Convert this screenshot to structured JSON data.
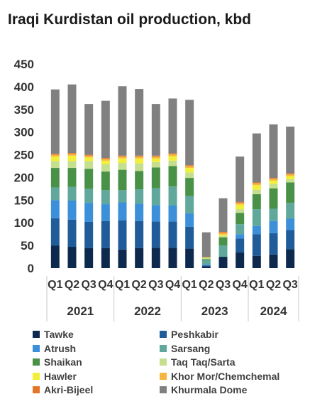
{
  "chart_data": {
    "type": "bar",
    "stacked": true,
    "title": "Iraqi Kurdistan oil production, kbd",
    "ylim": [
      0,
      450
    ],
    "yticks": [
      0,
      50,
      100,
      150,
      200,
      250,
      300,
      350,
      400,
      450
    ],
    "categories": [
      "Q1",
      "Q2",
      "Q3",
      "Q4",
      "Q1",
      "Q2",
      "Q3",
      "Q4",
      "Q1",
      "Q2",
      "Q3",
      "Q4",
      "Q1",
      "Q2",
      "Q3"
    ],
    "years": [
      {
        "label": "2021",
        "start": 0,
        "end": 3
      },
      {
        "label": "2022",
        "start": 4,
        "end": 7
      },
      {
        "label": "2023",
        "start": 8,
        "end": 11
      },
      {
        "label": "2024",
        "start": 12,
        "end": 14
      }
    ],
    "grid": false,
    "legend_position": "bottom",
    "series": [
      {
        "name": "Tawke",
        "color": "#0d2a4e",
        "values": [
          50,
          47,
          44,
          44,
          41,
          44,
          45,
          45,
          43,
          4,
          25,
          35,
          27,
          30,
          42
        ]
      },
      {
        "name": "Peshkabir",
        "color": "#1f5c99",
        "values": [
          60,
          60,
          58,
          60,
          64,
          60,
          58,
          58,
          48,
          2,
          0,
          30,
          48,
          47,
          42
        ]
      },
      {
        "name": "Atrush",
        "color": "#3c8fd9",
        "values": [
          40,
          42,
          42,
          37,
          40,
          38,
          36,
          35,
          30,
          2,
          0,
          10,
          18,
          27,
          25
        ]
      },
      {
        "name": "Sarsang",
        "color": "#5fa89b",
        "values": [
          28,
          30,
          31,
          31,
          27,
          32,
          37,
          42,
          38,
          10,
          25,
          22,
          37,
          27,
          35
        ]
      },
      {
        "name": "Shaikan",
        "color": "#4a9148",
        "values": [
          43,
          42,
          44,
          41,
          45,
          40,
          46,
          45,
          40,
          2,
          18,
          25,
          33,
          45,
          45
        ]
      },
      {
        "name": "Taq Taq/Sarta",
        "color": "#c6df8e",
        "values": [
          15,
          15,
          17,
          16,
          15,
          17,
          12,
          12,
          12,
          2,
          3,
          8,
          10,
          10,
          7
        ]
      },
      {
        "name": "Hawler",
        "color": "#f2ef3a",
        "values": [
          10,
          12,
          8,
          8,
          10,
          11,
          8,
          10,
          10,
          1,
          3,
          10,
          10,
          7,
          7
        ]
      },
      {
        "name": "Khor Mor/Chemchemal",
        "color": "#f5b540",
        "values": [
          4,
          4,
          4,
          4,
          4,
          4,
          4,
          4,
          4,
          1,
          4,
          4,
          4,
          4,
          4
        ]
      },
      {
        "name": "Akri-Bijeel",
        "color": "#e4762a",
        "values": [
          2,
          2,
          2,
          2,
          2,
          2,
          2,
          2,
          2,
          0,
          2,
          2,
          2,
          2,
          2
        ]
      },
      {
        "name": "Khurmala Dome",
        "color": "#808080",
        "values": [
          142,
          151,
          112,
          126,
          153,
          147,
          114,
          121,
          144,
          55,
          74,
          100,
          108,
          118,
          103
        ]
      }
    ]
  }
}
